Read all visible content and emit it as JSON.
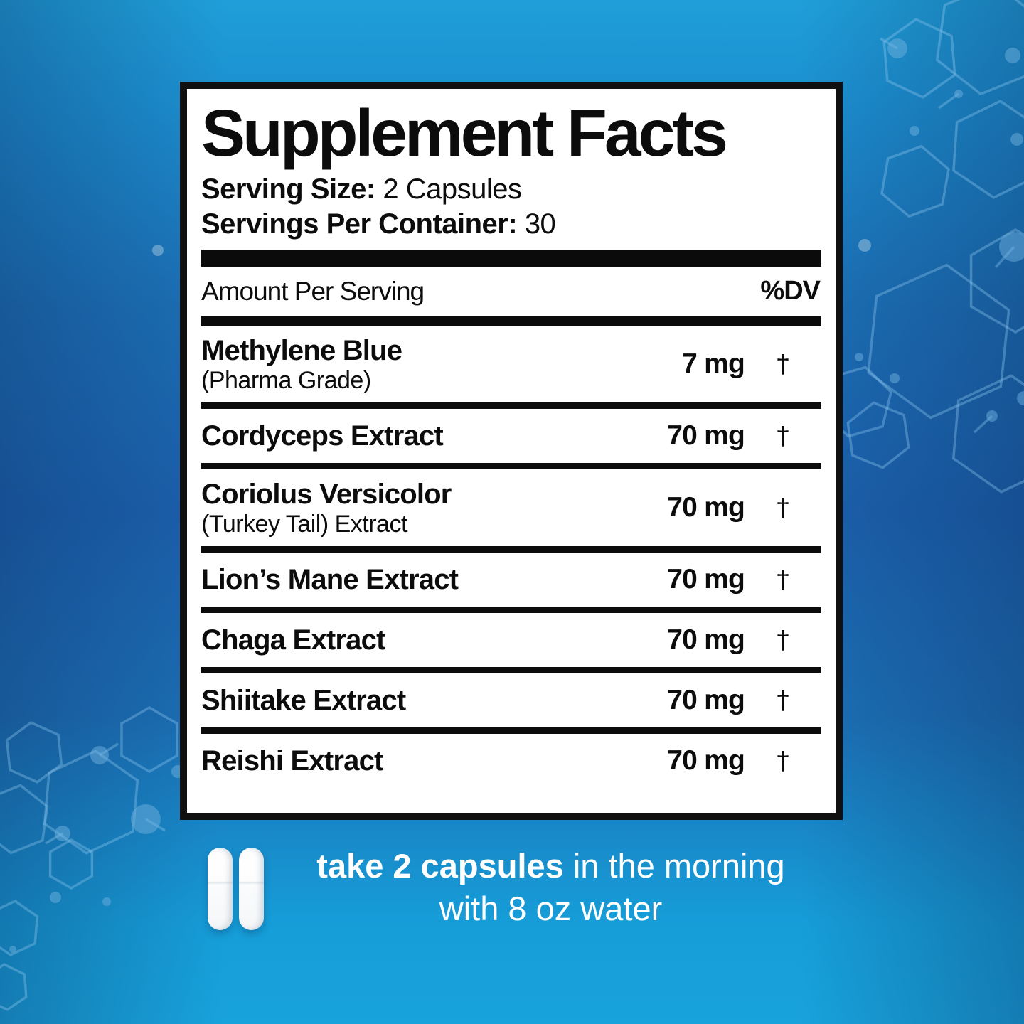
{
  "colors": {
    "background_cyan": "#18A3DC",
    "background_deep_blue": "#1B60AC",
    "panel_border": "#101010",
    "panel_background": "#FFFFFF",
    "text_black": "#0C0C0C",
    "directions_text": "#FFFFFF",
    "hexagon_line": "#8CC4EC"
  },
  "panel": {
    "title": "Supplement Facts",
    "serving_size_label": "Serving Size:",
    "serving_size_value": "2 Capsules",
    "servings_per_container_label": "Servings Per Container:",
    "servings_per_container_value": "30",
    "columns": {
      "amount_header": "Amount Per Serving",
      "dv_header": "%DV"
    },
    "rows": [
      {
        "name": "Methylene Blue",
        "subname": "(Pharma Grade)",
        "amount": "7 mg",
        "dv": "†"
      },
      {
        "name": "Cordyceps Extract",
        "amount": "70 mg",
        "dv": "†"
      },
      {
        "name": "Coriolus Versicolor",
        "subname": "(Turkey Tail) Extract",
        "amount": "70 mg",
        "dv": "†"
      },
      {
        "name": "Lion’s Mane Extract",
        "amount": "70 mg",
        "dv": "†"
      },
      {
        "name": "Chaga Extract",
        "amount": "70 mg",
        "dv": "†"
      },
      {
        "name": "Shiitake Extract",
        "amount": "70 mg",
        "dv": "†"
      },
      {
        "name": "Reishi Extract",
        "amount": "70 mg",
        "dv": "†"
      }
    ]
  },
  "directions": {
    "line1_bold": "take 2 capsules",
    "line1_rest": " in the morning",
    "line2": "with 8 oz water",
    "capsule_icon": "capsule-icon",
    "capsule_count": 2
  }
}
